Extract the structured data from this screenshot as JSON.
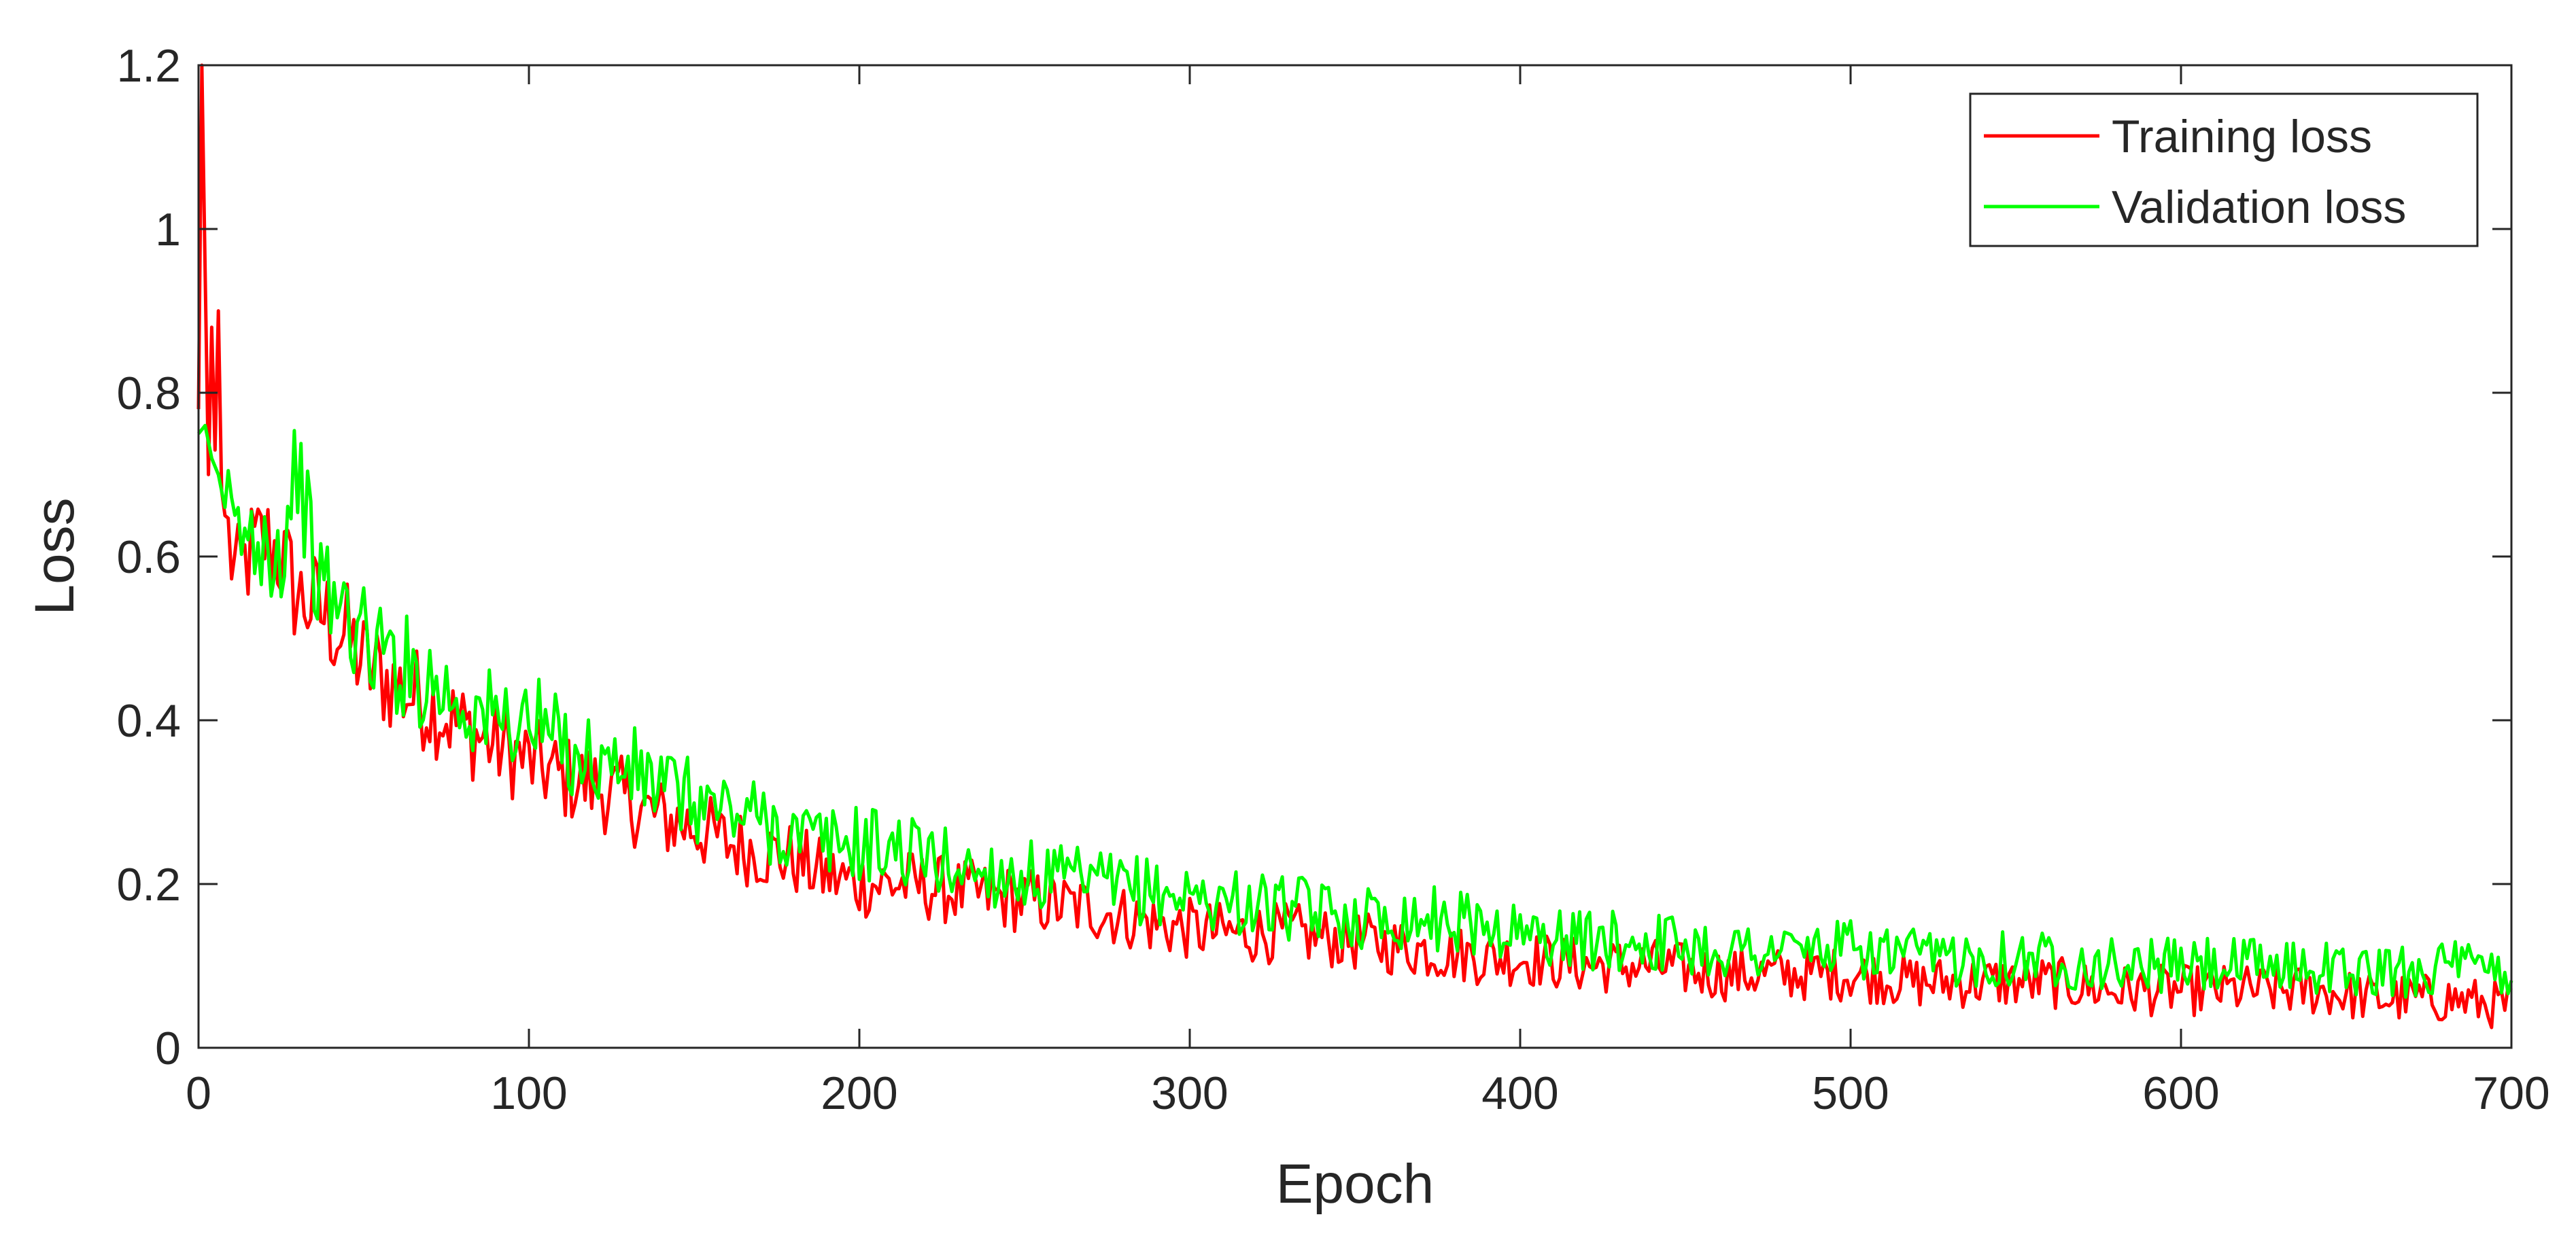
{
  "chart_data": {
    "type": "line",
    "title": "",
    "xlabel": "Epoch",
    "ylabel": "Loss",
    "xlim": [
      0,
      700
    ],
    "ylim": [
      0,
      1.2
    ],
    "xticks": [
      "0",
      "100",
      "200",
      "300",
      "400",
      "500",
      "600",
      "700"
    ],
    "yticks": [
      "0",
      "0.2",
      "0.4",
      "0.6",
      "0.8",
      "1",
      "1.2"
    ],
    "grid": false,
    "legend_position": "top-right",
    "series": [
      {
        "name": "Training loss",
        "color": "#ff0000",
        "x": [
          0,
          1,
          2,
          3,
          4,
          5,
          6,
          7,
          8,
          10,
          12,
          15,
          20,
          25,
          30,
          35,
          40,
          45,
          50,
          60,
          70,
          80,
          90,
          100,
          110,
          120,
          130,
          140,
          150,
          160,
          170,
          180,
          190,
          200,
          215,
          230,
          250,
          270,
          290,
          310,
          330,
          350,
          370,
          390,
          400,
          420,
          440,
          460,
          480,
          500,
          520,
          540,
          560,
          580,
          600,
          620,
          640,
          660,
          680,
          700
        ],
        "y": [
          0.78,
          1.2,
          0.95,
          0.7,
          0.88,
          0.73,
          0.9,
          0.68,
          0.65,
          0.6,
          0.57,
          0.6,
          0.62,
          0.6,
          0.55,
          0.54,
          0.52,
          0.5,
          0.47,
          0.44,
          0.42,
          0.39,
          0.37,
          0.35,
          0.33,
          0.32,
          0.3,
          0.28,
          0.27,
          0.25,
          0.24,
          0.23,
          0.21,
          0.2,
          0.2,
          0.19,
          0.18,
          0.17,
          0.15,
          0.14,
          0.14,
          0.13,
          0.12,
          0.11,
          0.11,
          0.1,
          0.1,
          0.09,
          0.09,
          0.09,
          0.08,
          0.08,
          0.08,
          0.07,
          0.07,
          0.07,
          0.07,
          0.06,
          0.06,
          0.05
        ]
      },
      {
        "name": "Validation loss",
        "color": "#00ff00",
        "x": [
          0,
          2,
          4,
          6,
          8,
          10,
          15,
          20,
          25,
          30,
          35,
          40,
          45,
          50,
          60,
          70,
          80,
          90,
          100,
          110,
          120,
          130,
          140,
          150,
          160,
          170,
          180,
          190,
          200,
          215,
          230,
          250,
          270,
          290,
          310,
          330,
          350,
          370,
          390,
          400,
          420,
          440,
          460,
          480,
          500,
          520,
          540,
          560,
          580,
          600,
          620,
          640,
          660,
          680,
          700
        ],
        "y": [
          0.75,
          0.76,
          0.72,
          0.7,
          0.66,
          0.63,
          0.62,
          0.63,
          0.6,
          0.72,
          0.58,
          0.55,
          0.53,
          0.5,
          0.47,
          0.45,
          0.42,
          0.4,
          0.4,
          0.37,
          0.35,
          0.34,
          0.32,
          0.3,
          0.29,
          0.28,
          0.26,
          0.25,
          0.25,
          0.24,
          0.22,
          0.21,
          0.2,
          0.19,
          0.18,
          0.17,
          0.16,
          0.16,
          0.15,
          0.14,
          0.13,
          0.13,
          0.12,
          0.12,
          0.12,
          0.11,
          0.11,
          0.11,
          0.1,
          0.1,
          0.1,
          0.1,
          0.09,
          0.1,
          0.09
        ]
      }
    ]
  }
}
